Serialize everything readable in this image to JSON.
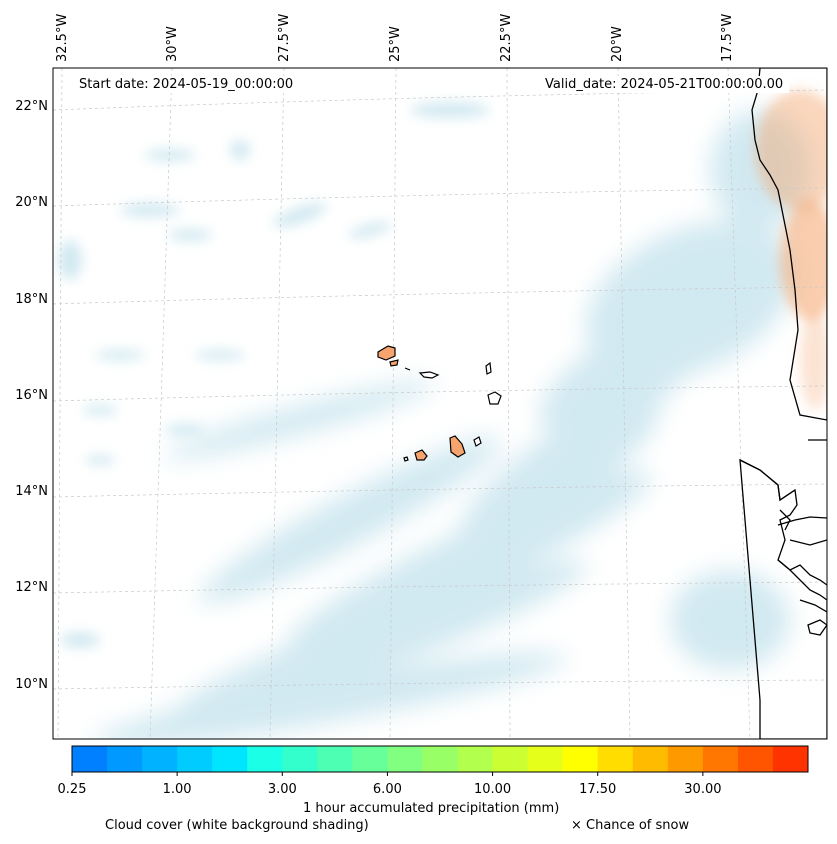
{
  "map": {
    "start_date": "Start date: 2024-05-19_00:00:00",
    "valid_date": "Valid_date: 2024-05-21T00:00:00.00",
    "lon_labels": [
      "32.5°W",
      "30°W",
      "27.5°W",
      "25°W",
      "22.5°W",
      "20°W",
      "17.5°W"
    ],
    "lat_labels": [
      "22°N",
      "20°N",
      "18°N",
      "16°N",
      "14°N",
      "12°N",
      "10°N"
    ],
    "colors": {
      "cloud": "#add8e6",
      "land_fill": "#f4a46c",
      "coast": "#000000",
      "grid": "#c8c8c8"
    }
  },
  "colorbar": {
    "label": "1 hour accumulated precipitation (mm)",
    "tick_labels": [
      "0.25",
      "1.00",
      "3.00",
      "6.00",
      "10.00",
      "17.50",
      "30.00"
    ],
    "colors": [
      "#0080ff",
      "#0099ff",
      "#00b2ff",
      "#00ccff",
      "#00e5ff",
      "#1affe5",
      "#33ffcc",
      "#4dffb2",
      "#66ff99",
      "#80ff80",
      "#99ff66",
      "#b3ff4d",
      "#ccff33",
      "#e5ff1a",
      "#ffff00",
      "#ffdd00",
      "#ffbb00",
      "#ff9900",
      "#ff7700",
      "#ff5500",
      "#ff3300"
    ]
  },
  "legend": {
    "cloud_cover": "Cloud cover (white background shading)",
    "snow": "× Chance of snow"
  }
}
